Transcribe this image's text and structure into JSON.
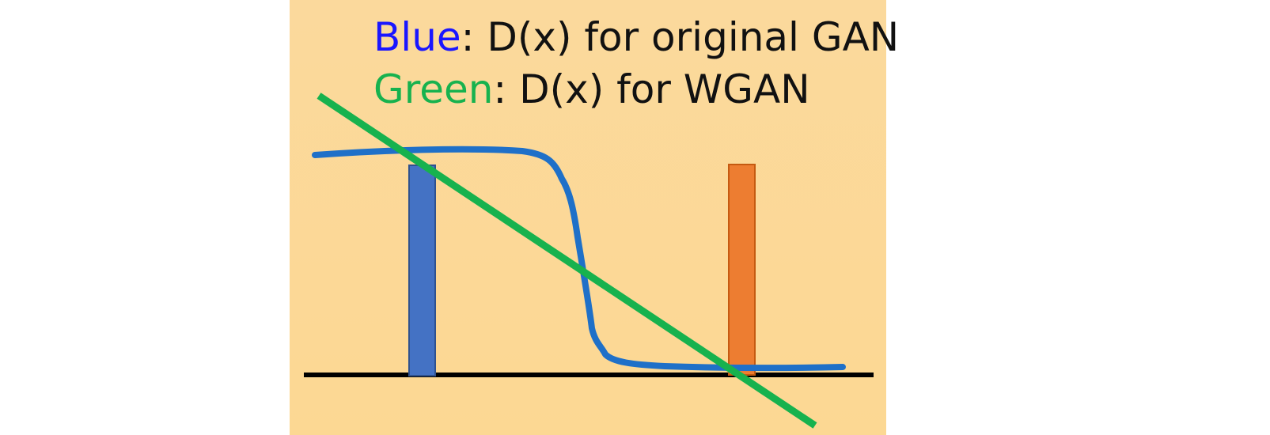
{
  "legend": {
    "blue": {
      "color_word": "Blue",
      "description": ": D(x) for original GAN",
      "color": "#1a16ff"
    },
    "green": {
      "color_word": "Green",
      "description": ": D(x) for WGAN",
      "color": "#17b24e"
    }
  },
  "colors": {
    "background": "#fcd893",
    "blue_curve": "#1f70c8",
    "green_line": "#17b24e",
    "real_bar": "#4472c4",
    "generated_bar": "#ed7d31",
    "baseline": "#000000"
  }
}
